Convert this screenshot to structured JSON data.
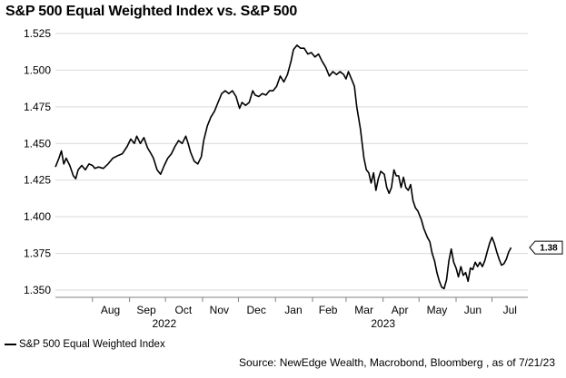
{
  "title": "S&P 500 Equal Weighted Index vs. S&P 500",
  "source": "Source: NewEdge Wealth, Macrobond, Bloomberg , as of 7/21/23",
  "legend": {
    "label": "S&P 500 Equal Weighted Index"
  },
  "end_label": "1.38",
  "colors": {
    "line": "#000000",
    "grid": "#d9d9d9",
    "axis": "#808080"
  },
  "chart_data": {
    "type": "line",
    "title": "S&P 500 Equal Weighted Index vs. S&P 500",
    "xlabel": "",
    "ylabel": "",
    "ylim": [
      1.35,
      1.525
    ],
    "xlim": [
      "2022-07-01",
      "2023-07-31"
    ],
    "y_ticks": [
      "1.350",
      "1.375",
      "1.400",
      "1.425",
      "1.450",
      "1.475",
      "1.500",
      "1.525"
    ],
    "x_ticks": [
      {
        "label": "Aug",
        "date": "2022-08-16"
      },
      {
        "label": "Sep",
        "date": "2022-09-15"
      },
      {
        "label": "Oct",
        "date": "2022-10-16"
      },
      {
        "label": "Nov",
        "date": "2022-11-15"
      },
      {
        "label": "Dec",
        "date": "2022-12-16"
      },
      {
        "label": "Jan",
        "date": "2023-01-16"
      },
      {
        "label": "Feb",
        "date": "2023-02-14"
      },
      {
        "label": "Mar",
        "date": "2023-03-16"
      },
      {
        "label": "Apr",
        "date": "2023-04-15"
      },
      {
        "label": "May",
        "date": "2023-05-16"
      },
      {
        "label": "Jun",
        "date": "2023-06-15"
      },
      {
        "label": "Jul",
        "date": "2023-07-16"
      }
    ],
    "year_labels": [
      {
        "label": "2022",
        "date": "2022-09-30"
      },
      {
        "label": "2023",
        "date": "2023-04-01"
      }
    ],
    "series": [
      {
        "name": "S&P 500 Equal Weighted Index",
        "points": [
          [
            "2022-07-01",
            1.434
          ],
          [
            "2022-07-04",
            1.44
          ],
          [
            "2022-07-06",
            1.445
          ],
          [
            "2022-07-08",
            1.436
          ],
          [
            "2022-07-10",
            1.44
          ],
          [
            "2022-07-13",
            1.435
          ],
          [
            "2022-07-16",
            1.428
          ],
          [
            "2022-07-18",
            1.426
          ],
          [
            "2022-07-20",
            1.432
          ],
          [
            "2022-07-23",
            1.435
          ],
          [
            "2022-07-26",
            1.432
          ],
          [
            "2022-07-29",
            1.436
          ],
          [
            "2022-08-01",
            1.435
          ],
          [
            "2022-08-03",
            1.433
          ],
          [
            "2022-08-06",
            1.434
          ],
          [
            "2022-08-10",
            1.433
          ],
          [
            "2022-08-14",
            1.436
          ],
          [
            "2022-08-18",
            1.44
          ],
          [
            "2022-08-23",
            1.442
          ],
          [
            "2022-08-26",
            1.443
          ],
          [
            "2022-08-30",
            1.448
          ],
          [
            "2022-09-02",
            1.453
          ],
          [
            "2022-09-05",
            1.45
          ],
          [
            "2022-09-07",
            1.455
          ],
          [
            "2022-09-10",
            1.45
          ],
          [
            "2022-09-13",
            1.454
          ],
          [
            "2022-09-16",
            1.447
          ],
          [
            "2022-09-19",
            1.443
          ],
          [
            "2022-09-21",
            1.44
          ],
          [
            "2022-09-24",
            1.432
          ],
          [
            "2022-09-27",
            1.429
          ],
          [
            "2022-09-30",
            1.435
          ],
          [
            "2022-10-03",
            1.44
          ],
          [
            "2022-10-06",
            1.443
          ],
          [
            "2022-10-09",
            1.448
          ],
          [
            "2022-10-12",
            1.452
          ],
          [
            "2022-10-15",
            1.45
          ],
          [
            "2022-10-18",
            1.455
          ],
          [
            "2022-10-20",
            1.45
          ],
          [
            "2022-10-22",
            1.444
          ],
          [
            "2022-10-25",
            1.438
          ],
          [
            "2022-10-28",
            1.436
          ],
          [
            "2022-10-31",
            1.441
          ],
          [
            "2022-11-02",
            1.452
          ],
          [
            "2022-11-05",
            1.462
          ],
          [
            "2022-11-08",
            1.468
          ],
          [
            "2022-11-11",
            1.472
          ],
          [
            "2022-11-14",
            1.478
          ],
          [
            "2022-11-17",
            1.484
          ],
          [
            "2022-11-20",
            1.486
          ],
          [
            "2022-11-23",
            1.484
          ],
          [
            "2022-11-26",
            1.486
          ],
          [
            "2022-11-29",
            1.482
          ],
          [
            "2022-12-02",
            1.474
          ],
          [
            "2022-12-04",
            1.478
          ],
          [
            "2022-12-07",
            1.476
          ],
          [
            "2022-12-10",
            1.478
          ],
          [
            "2022-12-13",
            1.486
          ],
          [
            "2022-12-15",
            1.483
          ],
          [
            "2022-12-18",
            1.482
          ],
          [
            "2022-12-21",
            1.484
          ],
          [
            "2022-12-24",
            1.483
          ],
          [
            "2022-12-27",
            1.486
          ],
          [
            "2022-12-30",
            1.486
          ],
          [
            "2023-01-02",
            1.489
          ],
          [
            "2023-01-05",
            1.496
          ],
          [
            "2023-01-08",
            1.492
          ],
          [
            "2023-01-11",
            1.497
          ],
          [
            "2023-01-14",
            1.506
          ],
          [
            "2023-01-16",
            1.514
          ],
          [
            "2023-01-19",
            1.517
          ],
          [
            "2023-01-22",
            1.515
          ],
          [
            "2023-01-25",
            1.515
          ],
          [
            "2023-01-28",
            1.511
          ],
          [
            "2023-01-31",
            1.512
          ],
          [
            "2023-02-03",
            1.509
          ],
          [
            "2023-02-06",
            1.511
          ],
          [
            "2023-02-09",
            1.506
          ],
          [
            "2023-02-12",
            1.502
          ],
          [
            "2023-02-15",
            1.496
          ],
          [
            "2023-02-18",
            1.499
          ],
          [
            "2023-02-21",
            1.497
          ],
          [
            "2023-02-24",
            1.499
          ],
          [
            "2023-02-27",
            1.497
          ],
          [
            "2023-03-01",
            1.494
          ],
          [
            "2023-03-03",
            1.499
          ],
          [
            "2023-03-06",
            1.493
          ],
          [
            "2023-03-08",
            1.489
          ],
          [
            "2023-03-10",
            1.475
          ],
          [
            "2023-03-13",
            1.46
          ],
          [
            "2023-03-16",
            1.44
          ],
          [
            "2023-03-18",
            1.432
          ],
          [
            "2023-03-20",
            1.43
          ],
          [
            "2023-03-22",
            1.423
          ],
          [
            "2023-03-24",
            1.43
          ],
          [
            "2023-03-26",
            1.418
          ],
          [
            "2023-03-28",
            1.426
          ],
          [
            "2023-03-30",
            1.431
          ],
          [
            "2023-04-02",
            1.429
          ],
          [
            "2023-04-04",
            1.42
          ],
          [
            "2023-04-06",
            1.416
          ],
          [
            "2023-04-08",
            1.42
          ],
          [
            "2023-04-10",
            1.432
          ],
          [
            "2023-04-12",
            1.428
          ],
          [
            "2023-04-14",
            1.428
          ],
          [
            "2023-04-16",
            1.42
          ],
          [
            "2023-04-18",
            1.427
          ],
          [
            "2023-04-20",
            1.42
          ],
          [
            "2023-04-22",
            1.418
          ],
          [
            "2023-04-24",
            1.422
          ],
          [
            "2023-04-26",
            1.411
          ],
          [
            "2023-04-28",
            1.406
          ],
          [
            "2023-04-30",
            1.404
          ],
          [
            "2023-05-03",
            1.398
          ],
          [
            "2023-05-05",
            1.392
          ],
          [
            "2023-05-08",
            1.386
          ],
          [
            "2023-05-10",
            1.383
          ],
          [
            "2023-05-12",
            1.375
          ],
          [
            "2023-05-14",
            1.37
          ],
          [
            "2023-05-16",
            1.362
          ],
          [
            "2023-05-18",
            1.356
          ],
          [
            "2023-05-20",
            1.352
          ],
          [
            "2023-05-22",
            1.351
          ],
          [
            "2023-05-24",
            1.357
          ],
          [
            "2023-05-26",
            1.37
          ],
          [
            "2023-05-28",
            1.378
          ],
          [
            "2023-05-30",
            1.369
          ],
          [
            "2023-06-01",
            1.365
          ],
          [
            "2023-06-03",
            1.359
          ],
          [
            "2023-06-05",
            1.366
          ],
          [
            "2023-06-07",
            1.36
          ],
          [
            "2023-06-09",
            1.362
          ],
          [
            "2023-06-11",
            1.356
          ],
          [
            "2023-06-13",
            1.365
          ],
          [
            "2023-06-15",
            1.364
          ],
          [
            "2023-06-17",
            1.369
          ],
          [
            "2023-06-19",
            1.366
          ],
          [
            "2023-06-21",
            1.369
          ],
          [
            "2023-06-23",
            1.366
          ],
          [
            "2023-06-25",
            1.37
          ],
          [
            "2023-06-27",
            1.376
          ],
          [
            "2023-06-29",
            1.382
          ],
          [
            "2023-07-01",
            1.386
          ],
          [
            "2023-07-03",
            1.382
          ],
          [
            "2023-07-05",
            1.376
          ],
          [
            "2023-07-07",
            1.371
          ],
          [
            "2023-07-09",
            1.367
          ],
          [
            "2023-07-11",
            1.368
          ],
          [
            "2023-07-13",
            1.371
          ],
          [
            "2023-07-15",
            1.376
          ],
          [
            "2023-07-17",
            1.379
          ]
        ]
      }
    ],
    "grid": "horizontal",
    "legend_position": "bottom-left"
  }
}
